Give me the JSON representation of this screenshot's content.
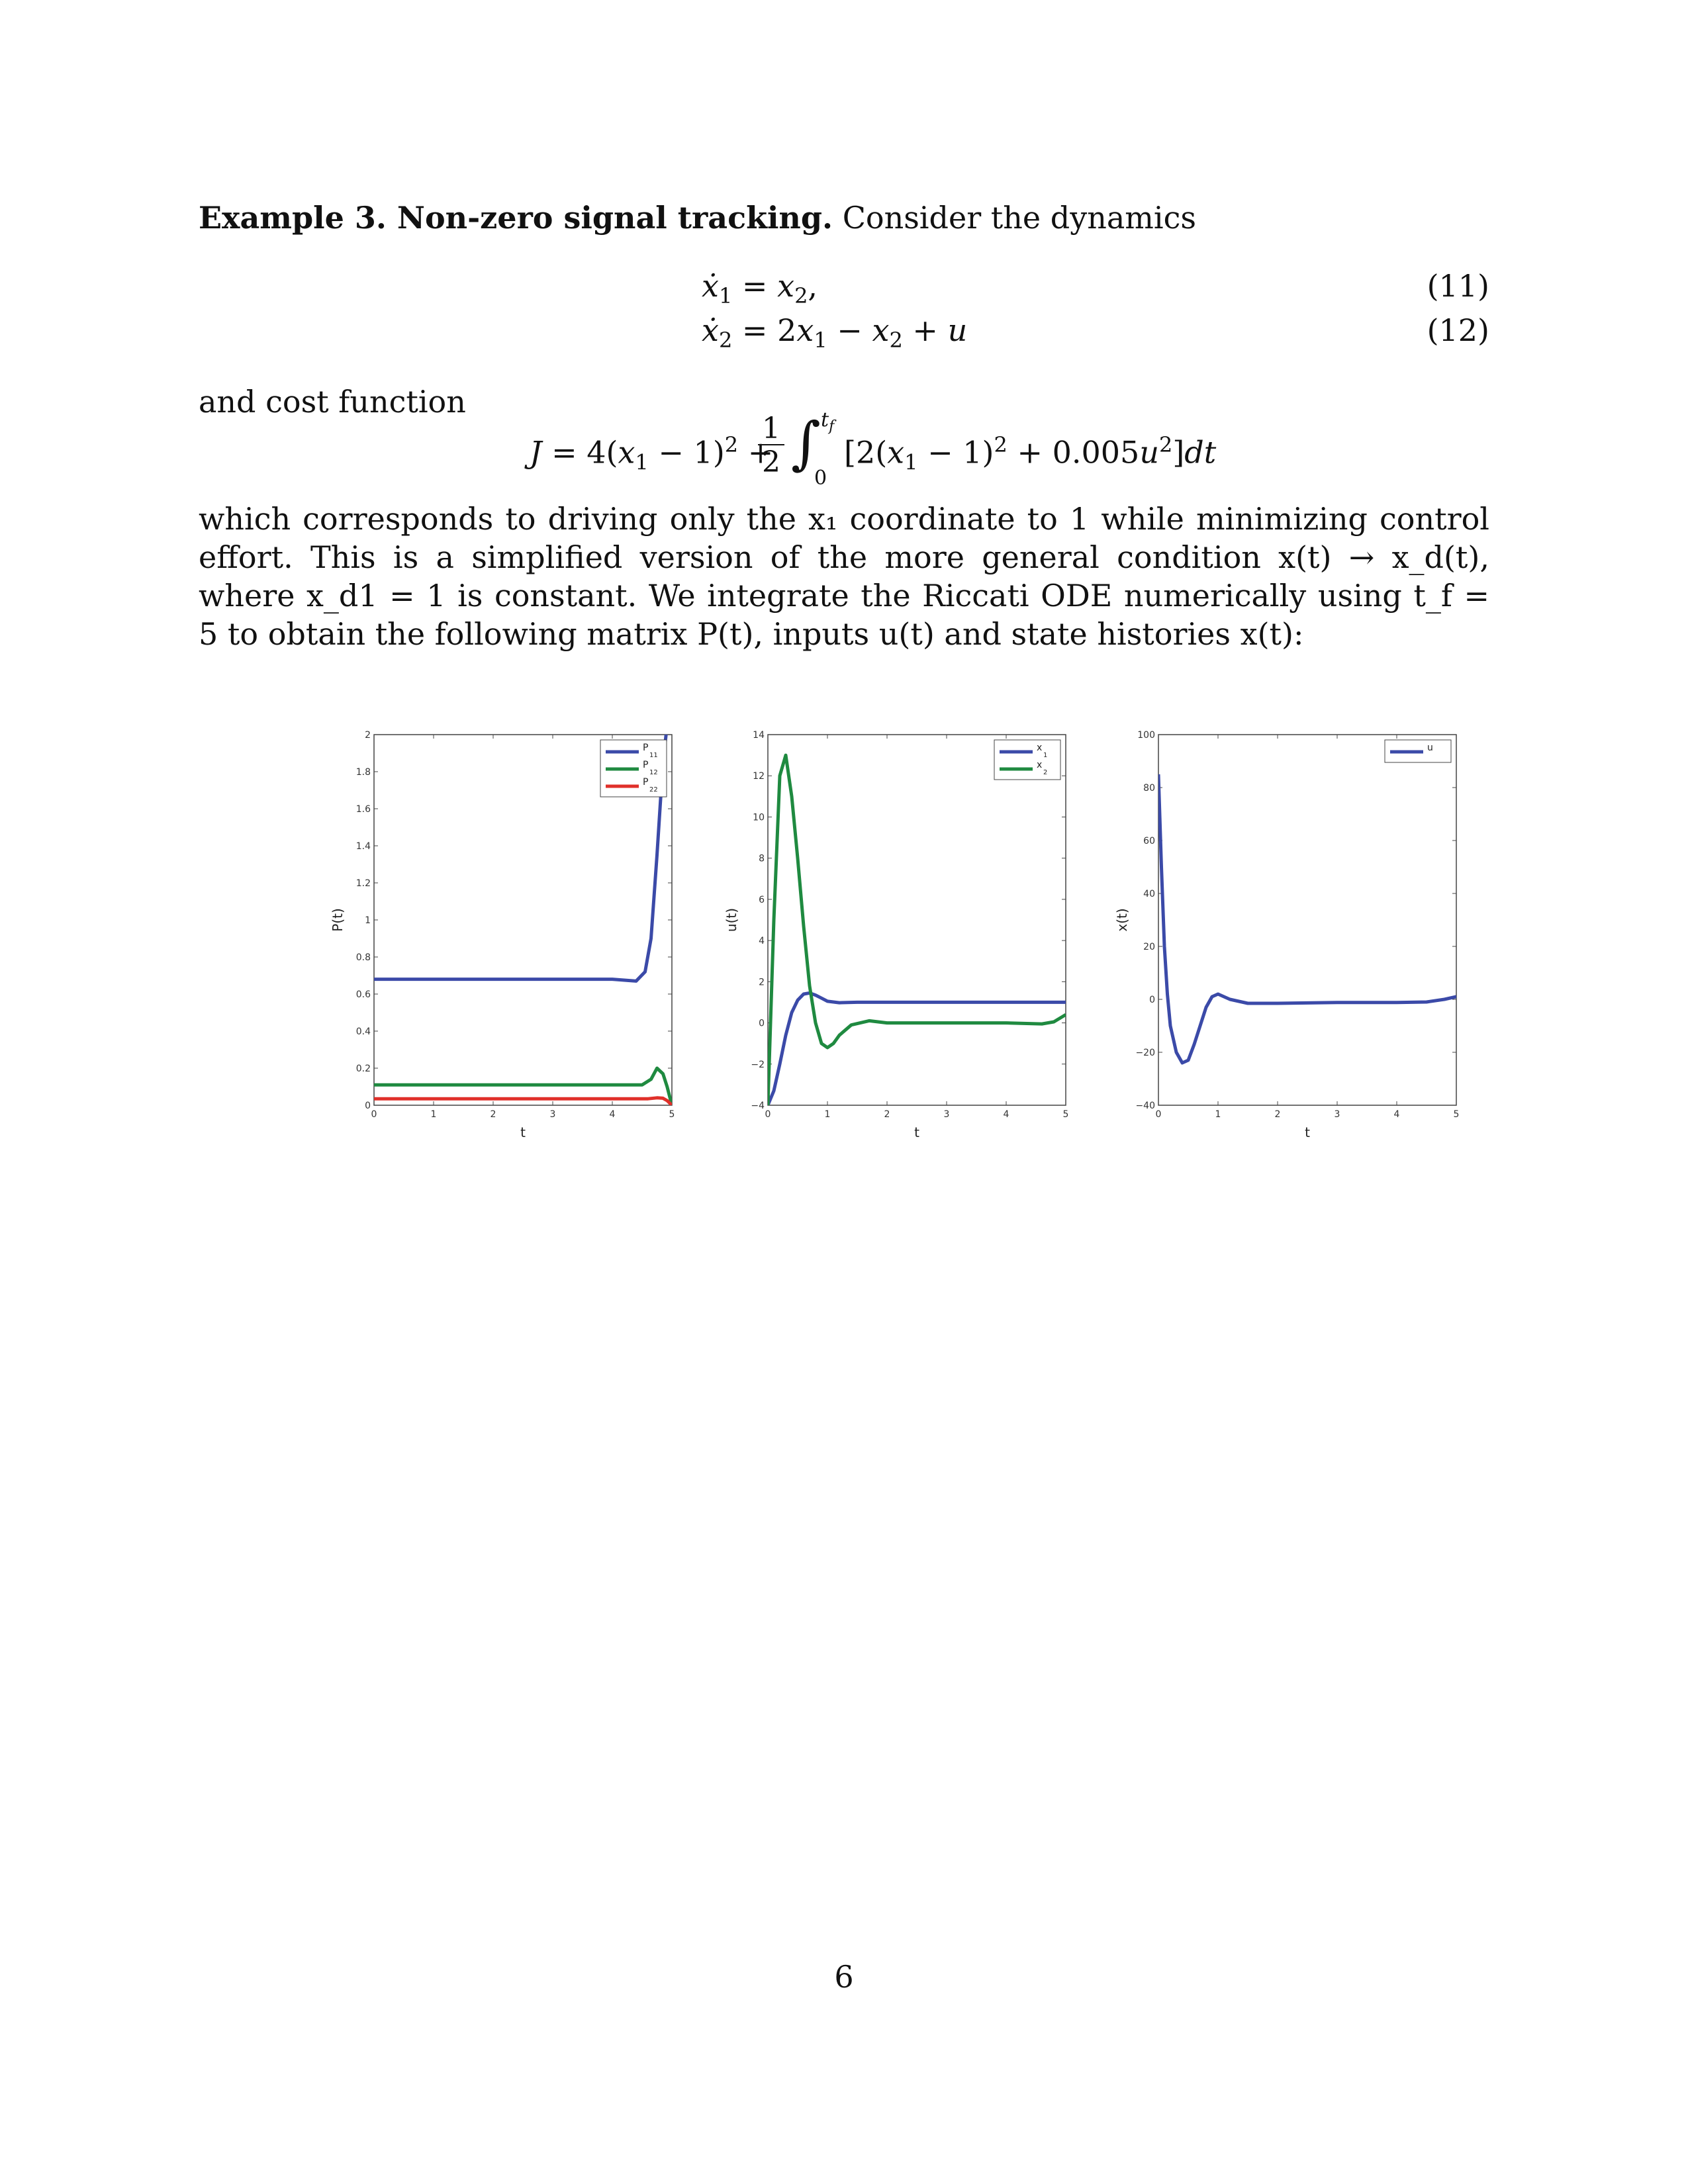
{
  "text": {
    "heading": "Example 3. Non-zero signal tracking.",
    "heading_after": "Consider the dynamics",
    "eq11_lhs": "ẋ",
    "eq11_rhs": "= x",
    "eq11_num": "(11)",
    "eq12_num": "(12)",
    "and_cost": "and cost function",
    "para2": "which corresponds to driving only the x₁ coordinate to 1 while minimizing control effort. This is a simplified version of the more general condition x(t) → x_d(t), where x_d1 = 1 is constant. We integrate the Riccati ODE numerically using t_f = 5 to obtain the following matrix P(t), inputs u(t) and state histories x(t):",
    "page_number": "6"
  },
  "colors": {
    "blue": "#3b4aa8",
    "green": "#1f8a40",
    "red": "#e0302a"
  },
  "chart_data": [
    {
      "type": "line",
      "xlabel": "t",
      "ylabel": "P(t)",
      "xlim": [
        0,
        5
      ],
      "ylim": [
        0,
        2
      ],
      "xticks": [
        "0",
        "1",
        "2",
        "3",
        "4",
        "5"
      ],
      "yticks": [
        "0",
        "0.2",
        "0.4",
        "0.6",
        "0.8",
        "1",
        "1.2",
        "1.4",
        "1.6",
        "1.8",
        "2"
      ],
      "legend": "top-right",
      "series": [
        {
          "name": "P11",
          "color": "blue",
          "x": [
            0,
            1,
            2,
            3,
            4,
            4.4,
            4.55,
            4.65,
            4.75,
            4.85,
            4.92,
            5
          ],
          "y": [
            0.68,
            0.68,
            0.68,
            0.68,
            0.68,
            0.67,
            0.72,
            0.9,
            1.35,
            1.85,
            2.05,
            2.5
          ]
        },
        {
          "name": "P12",
          "color": "green",
          "x": [
            0,
            1,
            2,
            3,
            4,
            4.5,
            4.65,
            4.75,
            4.85,
            4.92,
            5
          ],
          "y": [
            0.11,
            0.11,
            0.11,
            0.11,
            0.11,
            0.11,
            0.14,
            0.2,
            0.17,
            0.1,
            0.0
          ]
        },
        {
          "name": "P22",
          "color": "red",
          "x": [
            0,
            1,
            2,
            3,
            4,
            4.6,
            4.75,
            4.85,
            4.92,
            5
          ],
          "y": [
            0.035,
            0.035,
            0.035,
            0.035,
            0.035,
            0.035,
            0.04,
            0.038,
            0.025,
            0.0
          ]
        }
      ]
    },
    {
      "type": "line",
      "xlabel": "t",
      "ylabel": "u(t)",
      "xlim": [
        0,
        5
      ],
      "ylim": [
        -4,
        14
      ],
      "xticks": [
        "0",
        "1",
        "2",
        "3",
        "4",
        "5"
      ],
      "yticks": [
        "−4",
        "−2",
        "0",
        "2",
        "4",
        "6",
        "8",
        "10",
        "12",
        "14"
      ],
      "legend": "top-right",
      "series": [
        {
          "name": "x1",
          "color": "blue",
          "x": [
            0,
            0.1,
            0.2,
            0.3,
            0.4,
            0.5,
            0.6,
            0.7,
            0.8,
            0.9,
            1.0,
            1.2,
            1.5,
            2,
            3,
            4,
            5
          ],
          "y": [
            -4,
            -3.3,
            -2.0,
            -0.6,
            0.5,
            1.1,
            1.4,
            1.45,
            1.35,
            1.2,
            1.05,
            0.98,
            1.0,
            1.0,
            1.0,
            1.0,
            1.0
          ]
        },
        {
          "name": "x2",
          "color": "green",
          "x": [
            0,
            0.1,
            0.2,
            0.3,
            0.4,
            0.5,
            0.6,
            0.7,
            0.8,
            0.9,
            1.0,
            1.1,
            1.2,
            1.4,
            1.7,
            2,
            3,
            4,
            4.6,
            4.8,
            5
          ],
          "y": [
            -4,
            5,
            12,
            13,
            11,
            8,
            4.7,
            1.8,
            0,
            -1.0,
            -1.2,
            -1.0,
            -0.6,
            -0.1,
            0.1,
            0,
            0,
            0,
            -0.05,
            0.05,
            0.4
          ]
        }
      ]
    },
    {
      "type": "line",
      "xlabel": "t",
      "ylabel": "x(t)",
      "xlim": [
        0,
        5
      ],
      "ylim": [
        -40,
        100
      ],
      "xticks": [
        "0",
        "1",
        "2",
        "3",
        "4",
        "5"
      ],
      "yticks": [
        "−40",
        "−20",
        "0",
        "20",
        "40",
        "60",
        "80",
        "100"
      ],
      "legend": "top-right",
      "series": [
        {
          "name": "u",
          "color": "blue",
          "x": [
            0,
            0.05,
            0.1,
            0.15,
            0.2,
            0.3,
            0.4,
            0.5,
            0.6,
            0.7,
            0.8,
            0.9,
            1.0,
            1.2,
            1.5,
            2,
            3,
            4,
            4.5,
            4.8,
            5
          ],
          "y": [
            85,
            50,
            20,
            2,
            -10,
            -20,
            -24,
            -23,
            -17,
            -10,
            -3,
            1,
            2,
            0,
            -1.5,
            -1.5,
            -1.2,
            -1.2,
            -1.0,
            0,
            1
          ]
        }
      ]
    }
  ]
}
